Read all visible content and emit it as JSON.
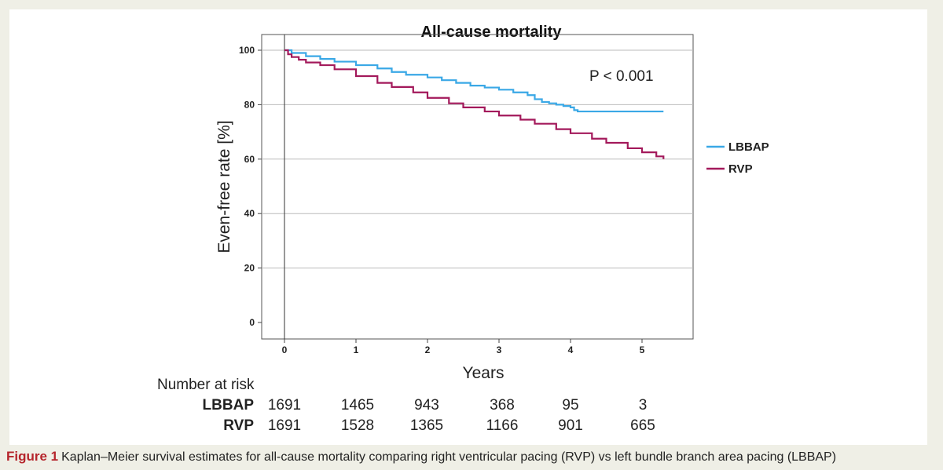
{
  "chart_data": {
    "type": "line",
    "title": "All-cause mortality",
    "xlabel": "Years",
    "ylabel": "Even-free rate [%]",
    "xlim": [
      -0.3,
      5.8
    ],
    "ylim": [
      -5,
      105
    ],
    "xticks": [
      0,
      1,
      2,
      3,
      4,
      5
    ],
    "yticks": [
      0,
      20,
      40,
      60,
      80,
      100
    ],
    "grid": "horizontal",
    "legend_position": "right",
    "annotation": "P < 0.001",
    "series": [
      {
        "name": "LBBAP",
        "color": "#3aa8e6",
        "x": [
          0,
          0.1,
          0.3,
          0.5,
          0.7,
          1.0,
          1.3,
          1.5,
          1.7,
          2.0,
          2.2,
          2.4,
          2.6,
          2.8,
          3.0,
          3.2,
          3.4,
          3.5,
          3.6,
          3.7,
          3.8,
          3.9,
          4.0,
          4.05,
          4.1,
          4.5,
          5.0,
          5.3
        ],
        "y": [
          100,
          99,
          97.8,
          96.8,
          95.8,
          94.5,
          93.3,
          92,
          91,
          90,
          89,
          88,
          87,
          86.3,
          85.5,
          84.5,
          83.5,
          82,
          81,
          80.5,
          80,
          79.5,
          79,
          78,
          77.5,
          77.5,
          77.5,
          77.5
        ]
      },
      {
        "name": "RVP",
        "color": "#a3195b",
        "x": [
          0,
          0.05,
          0.1,
          0.2,
          0.3,
          0.5,
          0.7,
          1.0,
          1.3,
          1.5,
          1.8,
          2.0,
          2.3,
          2.5,
          2.8,
          3.0,
          3.3,
          3.5,
          3.8,
          4.0,
          4.3,
          4.5,
          4.8,
          5.0,
          5.2,
          5.3
        ],
        "y": [
          100,
          98.5,
          97.5,
          96.5,
          95.5,
          94.5,
          93,
          90.5,
          88,
          86.5,
          84.5,
          82.5,
          80.5,
          79,
          77.5,
          76,
          74.5,
          73,
          71,
          69.5,
          67.5,
          66,
          64,
          62.5,
          61,
          60
        ]
      }
    ]
  },
  "risk_table": {
    "header": "Number at risk",
    "rows": [
      {
        "label": "LBBAP",
        "values": [
          "1691",
          "1465",
          "943",
          "368",
          "95",
          "3"
        ]
      },
      {
        "label": "RVP",
        "values": [
          "1691",
          "1528",
          "1365",
          "1166",
          "901",
          "665"
        ]
      }
    ]
  },
  "caption": {
    "figure_label": "Figure 1",
    "text": "Kaplan–Meier survival estimates for all-cause mortality comparing right ventricular pacing (RVP) vs left bundle branch area pacing (LBBAP)"
  }
}
